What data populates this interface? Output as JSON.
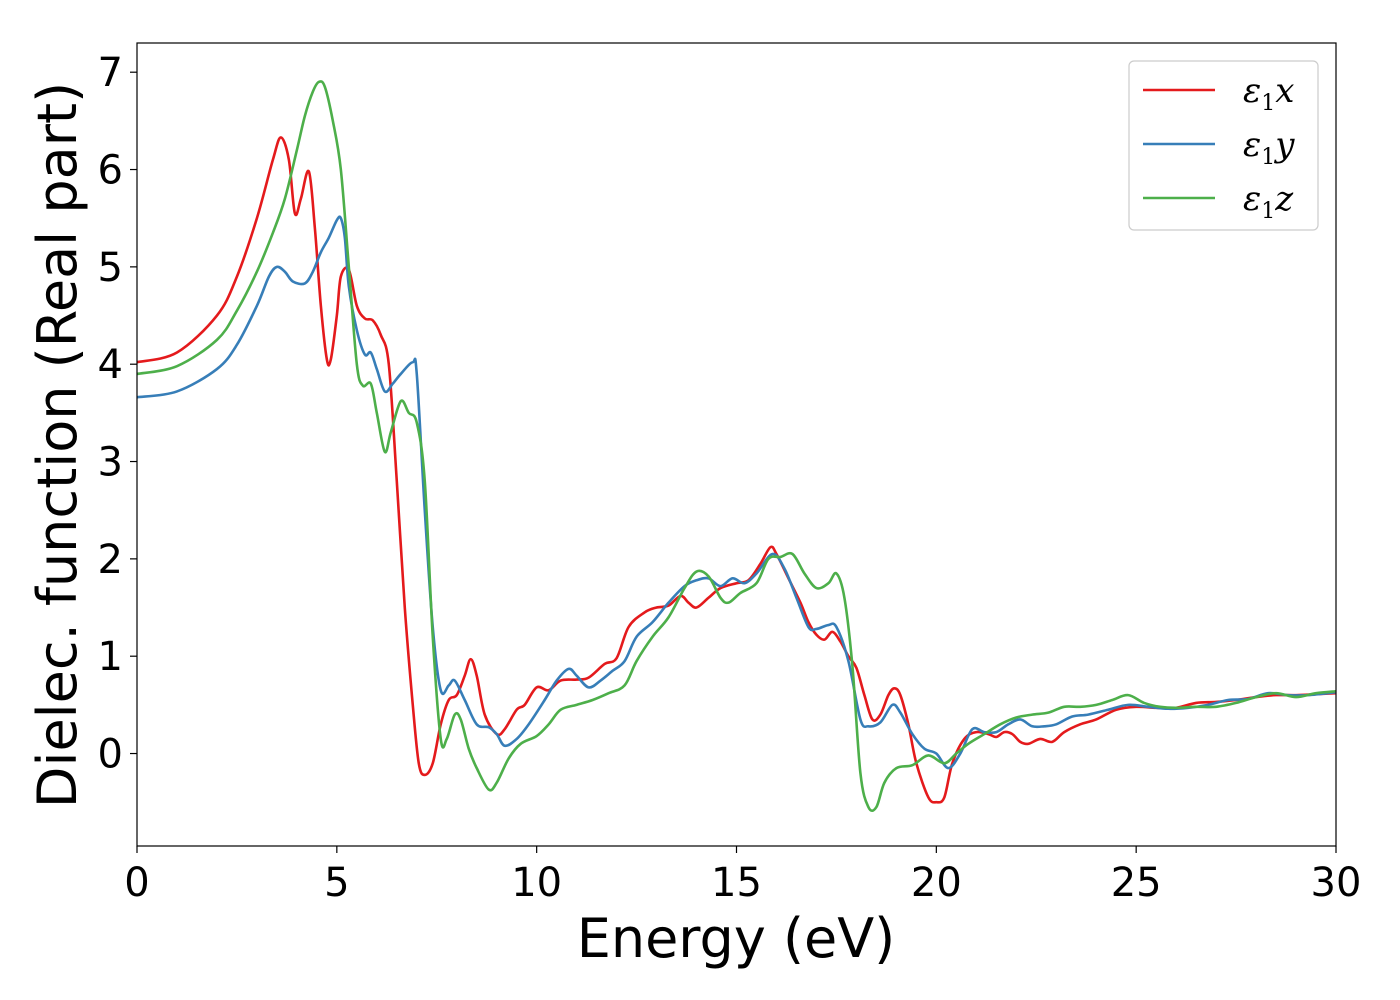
{
  "chart_data": {
    "type": "line",
    "xlabel": "Energy (eV)",
    "ylabel": "Dielec. function (Real part)",
    "xlim": [
      0,
      30
    ],
    "ylim": [
      -0.95,
      7.3
    ],
    "xticks": [
      {
        "value": 0,
        "label": "0"
      },
      {
        "value": 5,
        "label": "5"
      },
      {
        "value": 10,
        "label": "10"
      },
      {
        "value": 15,
        "label": "15"
      },
      {
        "value": 20,
        "label": "20"
      },
      {
        "value": 25,
        "label": "25"
      },
      {
        "value": 30,
        "label": "30"
      }
    ],
    "yticks": [
      {
        "value": 0,
        "label": "0"
      },
      {
        "value": 1,
        "label": "1"
      },
      {
        "value": 2,
        "label": "2"
      },
      {
        "value": 3,
        "label": "3"
      },
      {
        "value": 4,
        "label": "4"
      },
      {
        "value": 5,
        "label": "5"
      },
      {
        "value": 6,
        "label": "6"
      },
      {
        "value": 7,
        "label": "7"
      }
    ],
    "grid": false,
    "legend_position": "top-right",
    "series": [
      {
        "name": "ε1x",
        "symbol": "ε",
        "subscript": "1",
        "component": "x",
        "color": "#e41a1c",
        "points": [
          [
            0,
            4.02
          ],
          [
            1,
            4.12
          ],
          [
            2,
            4.5
          ],
          [
            2.5,
            4.9
          ],
          [
            3,
            5.5
          ],
          [
            3.4,
            6.1
          ],
          [
            3.6,
            6.33
          ],
          [
            3.8,
            6.1
          ],
          [
            3.95,
            5.55
          ],
          [
            4.1,
            5.7
          ],
          [
            4.3,
            5.98
          ],
          [
            4.45,
            5.4
          ],
          [
            4.6,
            4.6
          ],
          [
            4.75,
            4.05
          ],
          [
            4.85,
            4.05
          ],
          [
            5,
            4.5
          ],
          [
            5.1,
            4.9
          ],
          [
            5.3,
            4.97
          ],
          [
            5.5,
            4.6
          ],
          [
            5.7,
            4.47
          ],
          [
            5.9,
            4.45
          ],
          [
            6.1,
            4.3
          ],
          [
            6.3,
            4.0
          ],
          [
            6.5,
            2.8
          ],
          [
            6.7,
            1.5
          ],
          [
            6.9,
            0.5
          ],
          [
            7.05,
            -0.1
          ],
          [
            7.2,
            -0.22
          ],
          [
            7.4,
            -0.1
          ],
          [
            7.6,
            0.3
          ],
          [
            7.8,
            0.55
          ],
          [
            8.0,
            0.6
          ],
          [
            8.2,
            0.8
          ],
          [
            8.35,
            0.97
          ],
          [
            8.5,
            0.8
          ],
          [
            8.7,
            0.4
          ],
          [
            9.0,
            0.2
          ],
          [
            9.2,
            0.25
          ],
          [
            9.5,
            0.45
          ],
          [
            9.7,
            0.5
          ],
          [
            10.0,
            0.68
          ],
          [
            10.3,
            0.65
          ],
          [
            10.6,
            0.75
          ],
          [
            11.0,
            0.76
          ],
          [
            11.3,
            0.78
          ],
          [
            11.7,
            0.92
          ],
          [
            12.0,
            0.98
          ],
          [
            12.3,
            1.3
          ],
          [
            12.7,
            1.45
          ],
          [
            13.0,
            1.5
          ],
          [
            13.3,
            1.52
          ],
          [
            13.6,
            1.62
          ],
          [
            13.8,
            1.55
          ],
          [
            14.0,
            1.5
          ],
          [
            14.3,
            1.6
          ],
          [
            14.6,
            1.7
          ],
          [
            15.0,
            1.75
          ],
          [
            15.3,
            1.78
          ],
          [
            15.6,
            1.95
          ],
          [
            15.85,
            2.12
          ],
          [
            16.0,
            2.05
          ],
          [
            16.3,
            1.8
          ],
          [
            16.6,
            1.55
          ],
          [
            16.8,
            1.35
          ],
          [
            17.0,
            1.22
          ],
          [
            17.2,
            1.17
          ],
          [
            17.4,
            1.25
          ],
          [
            17.6,
            1.15
          ],
          [
            17.8,
            1.0
          ],
          [
            18.0,
            0.88
          ],
          [
            18.2,
            0.6
          ],
          [
            18.4,
            0.35
          ],
          [
            18.6,
            0.4
          ],
          [
            18.8,
            0.6
          ],
          [
            18.95,
            0.67
          ],
          [
            19.1,
            0.6
          ],
          [
            19.3,
            0.3
          ],
          [
            19.5,
            -0.1
          ],
          [
            19.8,
            -0.45
          ],
          [
            20.0,
            -0.5
          ],
          [
            20.2,
            -0.45
          ],
          [
            20.4,
            -0.1
          ],
          [
            20.7,
            0.15
          ],
          [
            21.0,
            0.22
          ],
          [
            21.3,
            0.2
          ],
          [
            21.5,
            0.17
          ],
          [
            21.7,
            0.22
          ],
          [
            21.9,
            0.2
          ],
          [
            22.1,
            0.12
          ],
          [
            22.3,
            0.1
          ],
          [
            22.6,
            0.15
          ],
          [
            22.9,
            0.12
          ],
          [
            23.2,
            0.22
          ],
          [
            23.6,
            0.3
          ],
          [
            24.0,
            0.35
          ],
          [
            24.5,
            0.45
          ],
          [
            25.0,
            0.48
          ],
          [
            25.5,
            0.47
          ],
          [
            26.0,
            0.47
          ],
          [
            26.5,
            0.52
          ],
          [
            27.0,
            0.53
          ],
          [
            27.5,
            0.55
          ],
          [
            28.0,
            0.58
          ],
          [
            28.5,
            0.6
          ],
          [
            29.0,
            0.6
          ],
          [
            29.5,
            0.61
          ],
          [
            30.0,
            0.62
          ]
        ]
      },
      {
        "name": "ε1y",
        "symbol": "ε",
        "subscript": "1",
        "component": "y",
        "color": "#377eb8",
        "points": [
          [
            0,
            3.66
          ],
          [
            1,
            3.72
          ],
          [
            2,
            3.95
          ],
          [
            2.5,
            4.2
          ],
          [
            3.0,
            4.6
          ],
          [
            3.3,
            4.9
          ],
          [
            3.5,
            5.0
          ],
          [
            3.7,
            4.95
          ],
          [
            3.9,
            4.85
          ],
          [
            4.2,
            4.83
          ],
          [
            4.4,
            4.95
          ],
          [
            4.6,
            5.15
          ],
          [
            4.8,
            5.3
          ],
          [
            5.0,
            5.48
          ],
          [
            5.1,
            5.5
          ],
          [
            5.2,
            5.3
          ],
          [
            5.3,
            4.8
          ],
          [
            5.5,
            4.35
          ],
          [
            5.7,
            4.1
          ],
          [
            5.85,
            4.12
          ],
          [
            6.0,
            3.95
          ],
          [
            6.2,
            3.72
          ],
          [
            6.4,
            3.8
          ],
          [
            6.6,
            3.9
          ],
          [
            6.9,
            4.02
          ],
          [
            7.0,
            3.9
          ],
          [
            7.2,
            2.5
          ],
          [
            7.4,
            1.3
          ],
          [
            7.6,
            0.65
          ],
          [
            7.8,
            0.7
          ],
          [
            7.95,
            0.75
          ],
          [
            8.2,
            0.55
          ],
          [
            8.5,
            0.3
          ],
          [
            8.8,
            0.27
          ],
          [
            9.0,
            0.2
          ],
          [
            9.2,
            0.08
          ],
          [
            9.5,
            0.15
          ],
          [
            9.8,
            0.3
          ],
          [
            10.2,
            0.55
          ],
          [
            10.5,
            0.75
          ],
          [
            10.8,
            0.87
          ],
          [
            11.0,
            0.8
          ],
          [
            11.3,
            0.68
          ],
          [
            11.6,
            0.75
          ],
          [
            11.9,
            0.85
          ],
          [
            12.2,
            0.95
          ],
          [
            12.5,
            1.2
          ],
          [
            12.9,
            1.35
          ],
          [
            13.3,
            1.55
          ],
          [
            13.7,
            1.72
          ],
          [
            14.0,
            1.78
          ],
          [
            14.3,
            1.8
          ],
          [
            14.6,
            1.72
          ],
          [
            14.9,
            1.8
          ],
          [
            15.2,
            1.75
          ],
          [
            15.5,
            1.85
          ],
          [
            15.9,
            2.05
          ],
          [
            16.2,
            1.9
          ],
          [
            16.5,
            1.6
          ],
          [
            16.8,
            1.3
          ],
          [
            17.0,
            1.28
          ],
          [
            17.3,
            1.32
          ],
          [
            17.5,
            1.3
          ],
          [
            17.8,
            0.95
          ],
          [
            18.1,
            0.35
          ],
          [
            18.3,
            0.28
          ],
          [
            18.6,
            0.32
          ],
          [
            18.9,
            0.5
          ],
          [
            19.1,
            0.42
          ],
          [
            19.4,
            0.2
          ],
          [
            19.7,
            0.05
          ],
          [
            20.0,
            0.0
          ],
          [
            20.3,
            -0.15
          ],
          [
            20.6,
            0.0
          ],
          [
            20.9,
            0.25
          ],
          [
            21.2,
            0.22
          ],
          [
            21.5,
            0.22
          ],
          [
            21.8,
            0.3
          ],
          [
            22.1,
            0.35
          ],
          [
            22.4,
            0.28
          ],
          [
            22.7,
            0.28
          ],
          [
            23.0,
            0.3
          ],
          [
            23.4,
            0.38
          ],
          [
            23.8,
            0.4
          ],
          [
            24.3,
            0.45
          ],
          [
            24.8,
            0.5
          ],
          [
            25.3,
            0.48
          ],
          [
            25.8,
            0.46
          ],
          [
            26.3,
            0.47
          ],
          [
            26.8,
            0.5
          ],
          [
            27.3,
            0.55
          ],
          [
            27.8,
            0.56
          ],
          [
            28.3,
            0.62
          ],
          [
            28.8,
            0.6
          ],
          [
            29.3,
            0.6
          ],
          [
            30.0,
            0.63
          ]
        ]
      },
      {
        "name": "ε1z",
        "symbol": "ε",
        "subscript": "1",
        "component": "z",
        "color": "#4daf4a",
        "points": [
          [
            0,
            3.9
          ],
          [
            1,
            3.98
          ],
          [
            2,
            4.25
          ],
          [
            2.5,
            4.55
          ],
          [
            3.0,
            4.95
          ],
          [
            3.4,
            5.35
          ],
          [
            3.7,
            5.7
          ],
          [
            4.0,
            6.2
          ],
          [
            4.2,
            6.55
          ],
          [
            4.4,
            6.8
          ],
          [
            4.55,
            6.9
          ],
          [
            4.7,
            6.85
          ],
          [
            4.9,
            6.5
          ],
          [
            5.1,
            6.0
          ],
          [
            5.3,
            5.0
          ],
          [
            5.5,
            4.0
          ],
          [
            5.65,
            3.78
          ],
          [
            5.85,
            3.8
          ],
          [
            6.0,
            3.5
          ],
          [
            6.2,
            3.1
          ],
          [
            6.35,
            3.3
          ],
          [
            6.6,
            3.62
          ],
          [
            6.8,
            3.5
          ],
          [
            7.0,
            3.4
          ],
          [
            7.2,
            2.8
          ],
          [
            7.4,
            1.2
          ],
          [
            7.6,
            0.15
          ],
          [
            7.75,
            0.15
          ],
          [
            7.95,
            0.4
          ],
          [
            8.1,
            0.35
          ],
          [
            8.3,
            0.05
          ],
          [
            8.5,
            -0.15
          ],
          [
            8.8,
            -0.37
          ],
          [
            9.0,
            -0.3
          ],
          [
            9.3,
            -0.05
          ],
          [
            9.6,
            0.1
          ],
          [
            10.0,
            0.18
          ],
          [
            10.3,
            0.3
          ],
          [
            10.6,
            0.45
          ],
          [
            11.0,
            0.5
          ],
          [
            11.4,
            0.55
          ],
          [
            11.8,
            0.62
          ],
          [
            12.2,
            0.7
          ],
          [
            12.5,
            0.95
          ],
          [
            12.9,
            1.2
          ],
          [
            13.3,
            1.4
          ],
          [
            13.7,
            1.7
          ],
          [
            14.0,
            1.87
          ],
          [
            14.3,
            1.82
          ],
          [
            14.6,
            1.6
          ],
          [
            14.8,
            1.55
          ],
          [
            15.1,
            1.65
          ],
          [
            15.5,
            1.75
          ],
          [
            15.8,
            2.0
          ],
          [
            16.1,
            2.02
          ],
          [
            16.4,
            2.05
          ],
          [
            16.7,
            1.85
          ],
          [
            17.0,
            1.7
          ],
          [
            17.3,
            1.75
          ],
          [
            17.5,
            1.85
          ],
          [
            17.7,
            1.6
          ],
          [
            17.9,
            0.9
          ],
          [
            18.1,
            -0.2
          ],
          [
            18.3,
            -0.55
          ],
          [
            18.5,
            -0.55
          ],
          [
            18.7,
            -0.3
          ],
          [
            19.0,
            -0.15
          ],
          [
            19.4,
            -0.12
          ],
          [
            19.8,
            -0.02
          ],
          [
            20.2,
            -0.1
          ],
          [
            20.5,
            0.0
          ],
          [
            20.8,
            0.1
          ],
          [
            21.2,
            0.2
          ],
          [
            21.6,
            0.3
          ],
          [
            22.0,
            0.37
          ],
          [
            22.4,
            0.4
          ],
          [
            22.8,
            0.42
          ],
          [
            23.2,
            0.48
          ],
          [
            23.6,
            0.48
          ],
          [
            24.0,
            0.5
          ],
          [
            24.4,
            0.55
          ],
          [
            24.8,
            0.6
          ],
          [
            25.2,
            0.52
          ],
          [
            25.6,
            0.48
          ],
          [
            26.0,
            0.47
          ],
          [
            26.5,
            0.48
          ],
          [
            27.0,
            0.48
          ],
          [
            27.5,
            0.52
          ],
          [
            28.0,
            0.58
          ],
          [
            28.5,
            0.62
          ],
          [
            29.0,
            0.58
          ],
          [
            29.5,
            0.62
          ],
          [
            30.0,
            0.64
          ]
        ]
      }
    ]
  }
}
